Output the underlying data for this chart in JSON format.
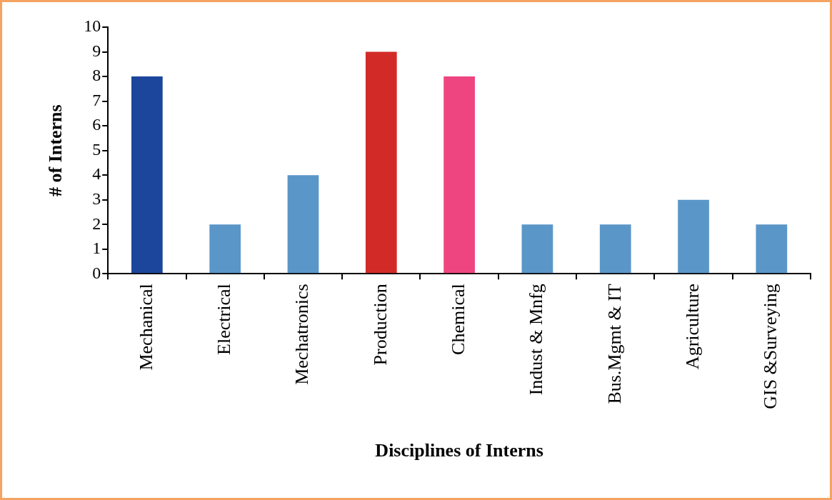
{
  "chart_data": {
    "type": "bar",
    "xlabel": "Disciplines of Interns",
    "ylabel": "# of Interns",
    "categories": [
      "Mechanical",
      "Electrical",
      "Mechatronics",
      "Production",
      "Chemical",
      "Indust & Mnfg",
      "Bus.Mgmt & IT",
      "Agriculture",
      "GIS &Surveying"
    ],
    "values": [
      8,
      2,
      4,
      9,
      8,
      2,
      2,
      3,
      2
    ],
    "colors": [
      "#1c469c",
      "#5b96c8",
      "#5b96c8",
      "#d22b27",
      "#ee4580",
      "#5b96c8",
      "#5b96c8",
      "#5b96c8",
      "#5b96c8"
    ],
    "ylim": [
      0,
      10
    ],
    "yticks": [
      0,
      1,
      2,
      3,
      4,
      5,
      6,
      7,
      8,
      9,
      10
    ],
    "grid": false,
    "legend": false
  }
}
